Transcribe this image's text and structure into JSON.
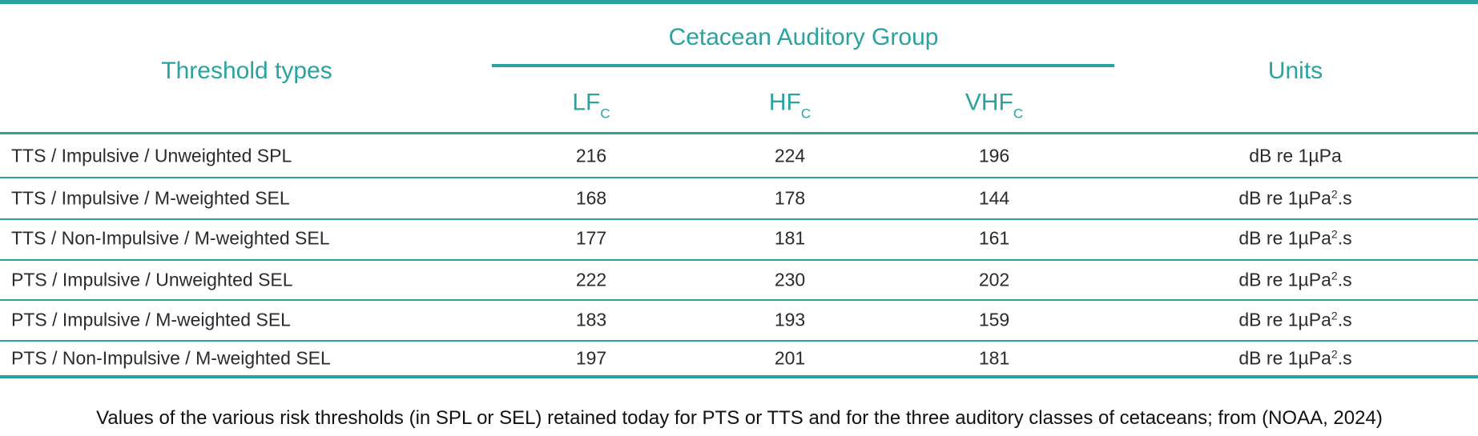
{
  "table": {
    "header": {
      "threshold": "Threshold types",
      "group": "Cetacean Auditory Group",
      "units": "Units",
      "groups": [
        [
          "LF",
          "C"
        ],
        [
          "HF",
          "C"
        ],
        [
          "VHF",
          "C"
        ]
      ]
    },
    "rows": [
      [
        "TTS / Impulsive / Unweighted SPL",
        216,
        224,
        196,
        [
          "dB re 1µPa"
        ]
      ],
      [
        "TTS / Impulsive / M-weighted SEL",
        168,
        178,
        144,
        [
          "dB re 1µPa",
          "2",
          ".s"
        ]
      ],
      [
        "TTS / Non-Impulsive / M-weighted SEL",
        177,
        181,
        161,
        [
          "dB re 1µPa",
          "2",
          ".s"
        ]
      ],
      [
        "PTS / Impulsive / Unweighted SEL",
        222,
        230,
        202,
        [
          "dB re 1µPa",
          "2",
          ".s"
        ]
      ],
      [
        "PTS / Impulsive / M-weighted SEL",
        183,
        193,
        159,
        [
          "dB re 1µPa",
          "2",
          ".s"
        ]
      ],
      [
        "PTS / Non-Impulsive / M-weighted SEL",
        197,
        201,
        181,
        [
          "dB re 1µPa",
          "2",
          ".s"
        ]
      ]
    ]
  },
  "caption": "Values of the various risk thresholds (in SPL or SEL) retained today for PTS or TTS and for the three auditory classes of cetaceans; from (NOAA, 2024)"
}
